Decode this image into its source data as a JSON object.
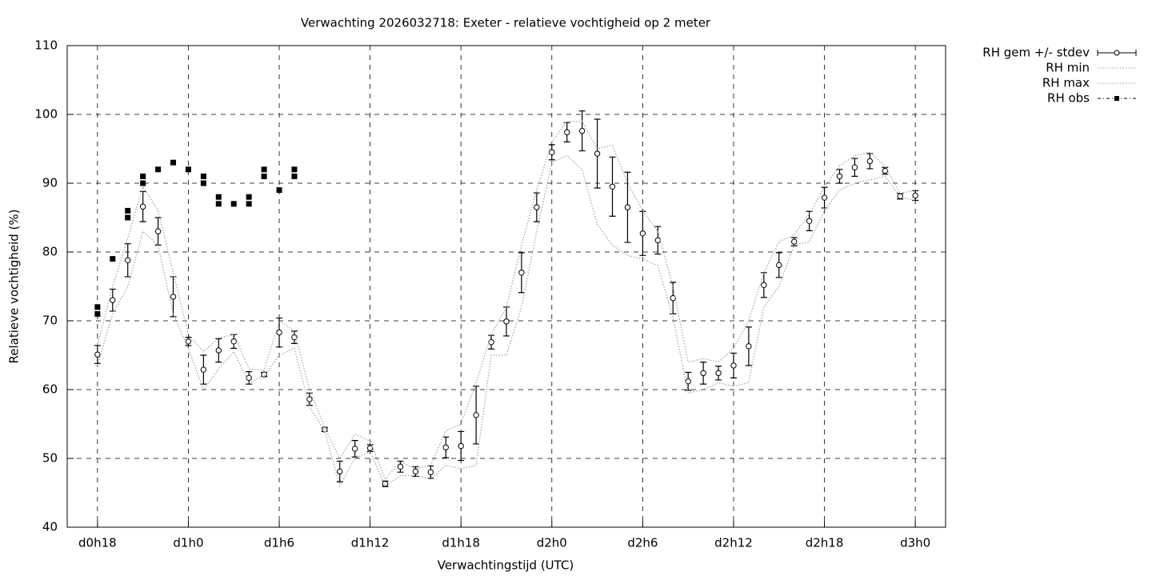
{
  "chart_data": {
    "type": "line",
    "title": "Verwachting 2026032718: Exeter - relatieve vochtigheid op 2 meter",
    "xlabel": "Verwachtingstijd (UTC)",
    "ylabel": "Relatieve vochtigheid (%)",
    "xlim": [
      16,
      74
    ],
    "ylim": [
      40,
      110
    ],
    "xticks": [
      {
        "value": 18,
        "label": "d0h18"
      },
      {
        "value": 24,
        "label": "d1h0"
      },
      {
        "value": 30,
        "label": "d1h6"
      },
      {
        "value": 36,
        "label": "d1h12"
      },
      {
        "value": 42,
        "label": "d1h18"
      },
      {
        "value": 48,
        "label": "d2h0"
      },
      {
        "value": 54,
        "label": "d2h6"
      },
      {
        "value": 60,
        "label": "d2h12"
      },
      {
        "value": 66,
        "label": "d2h18"
      },
      {
        "value": 72,
        "label": "d3h0"
      }
    ],
    "yticks": [
      40,
      50,
      60,
      70,
      80,
      90,
      100,
      110
    ],
    "grid": true,
    "legend": "outside-right",
    "x": [
      18,
      19,
      20,
      21,
      22,
      23,
      24,
      25,
      26,
      27,
      28,
      29,
      30,
      31,
      32,
      33,
      34,
      35,
      36,
      37,
      38,
      39,
      40,
      41,
      42,
      43,
      44,
      45,
      46,
      47,
      48,
      49,
      50,
      51,
      52,
      53,
      54,
      55,
      56,
      57,
      58,
      59,
      60,
      61,
      62,
      63,
      64,
      65,
      66,
      67,
      68,
      69,
      70,
      71,
      72
    ],
    "series": [
      {
        "name": "RH gem +/- stdev",
        "color": "#000000",
        "values": [
          65.1,
          73.0,
          78.8,
          86.6,
          83.0,
          73.5,
          67.0,
          62.9,
          65.7,
          67.0,
          61.7,
          62.2,
          68.3,
          67.6,
          58.6,
          54.2,
          48.1,
          51.4,
          51.5,
          46.3,
          48.8,
          48.1,
          48.0,
          51.6,
          51.8,
          56.3,
          66.9,
          69.9,
          77.0,
          86.5,
          94.5,
          97.4,
          97.6,
          94.3,
          89.5,
          86.5,
          82.7,
          81.7,
          73.3,
          61.2,
          62.4,
          62.4,
          63.5,
          66.3,
          75.2,
          78.1,
          81.5,
          84.5,
          87.9,
          91.0,
          92.3,
          93.2,
          91.8,
          88.1,
          88.2
        ],
        "errors": [
          1.3,
          1.6,
          2.4,
          2.2,
          2.0,
          2.9,
          0.6,
          2.1,
          1.7,
          1.0,
          0.9,
          0.3,
          2.1,
          0.9,
          0.9,
          0.3,
          1.5,
          1.2,
          0.5,
          0.4,
          0.8,
          0.7,
          0.9,
          1.5,
          2.1,
          4.2,
          1.0,
          2.1,
          2.9,
          2.1,
          1.1,
          1.4,
          2.9,
          5.0,
          4.3,
          5.1,
          3.2,
          2.0,
          2.3,
          1.3,
          1.6,
          1.0,
          1.8,
          2.8,
          1.8,
          1.8,
          0.6,
          1.4,
          1.5,
          1.0,
          1.3,
          1.1,
          0.5,
          0.4,
          0.7
        ]
      },
      {
        "name": "RH min",
        "color": "#a0a0a0",
        "values": [
          63.5,
          71,
          75,
          83,
          81,
          71,
          66,
          60,
          63,
          65.5,
          61,
          62,
          65,
          66,
          57.5,
          54,
          46,
          50,
          51,
          46,
          47.5,
          47.5,
          47,
          49,
          48.5,
          49,
          65,
          65,
          72,
          83,
          93,
          94,
          92,
          84,
          81,
          79.5,
          79,
          78,
          70.5,
          59.5,
          60,
          61,
          60.5,
          61,
          72,
          75,
          81,
          81.5,
          86,
          89,
          90,
          90.5,
          91,
          88,
          87.5
        ]
      },
      {
        "name": "RH max",
        "color": "#a0a0a0",
        "values": [
          66.5,
          75,
          82,
          89.5,
          86,
          77,
          68,
          65.5,
          67.5,
          68,
          63,
          62.8,
          70,
          68.5,
          60,
          54.5,
          50,
          53.5,
          52.5,
          47,
          49.5,
          48.5,
          49,
          54,
          55,
          61,
          68,
          72,
          81,
          89,
          96,
          99,
          99,
          95,
          95.5,
          90,
          86,
          83,
          75,
          64,
          64.5,
          64,
          66,
          70,
          77,
          81.5,
          82.5,
          85.5,
          89.5,
          92.5,
          94,
          94.5,
          92.5,
          88.5,
          89
        ]
      },
      {
        "name": "RH obs",
        "color": "#000000",
        "x": [
          18,
          18,
          19,
          20,
          20,
          21,
          21,
          22,
          23,
          24,
          25,
          25,
          26,
          26,
          27,
          28,
          28,
          29,
          29,
          30,
          31,
          31
        ],
        "values": [
          72,
          71,
          79,
          86,
          85,
          91,
          90,
          92,
          93,
          92,
          91,
          90,
          88,
          87,
          87,
          88,
          87,
          92,
          91,
          89,
          92,
          91
        ]
      }
    ]
  }
}
